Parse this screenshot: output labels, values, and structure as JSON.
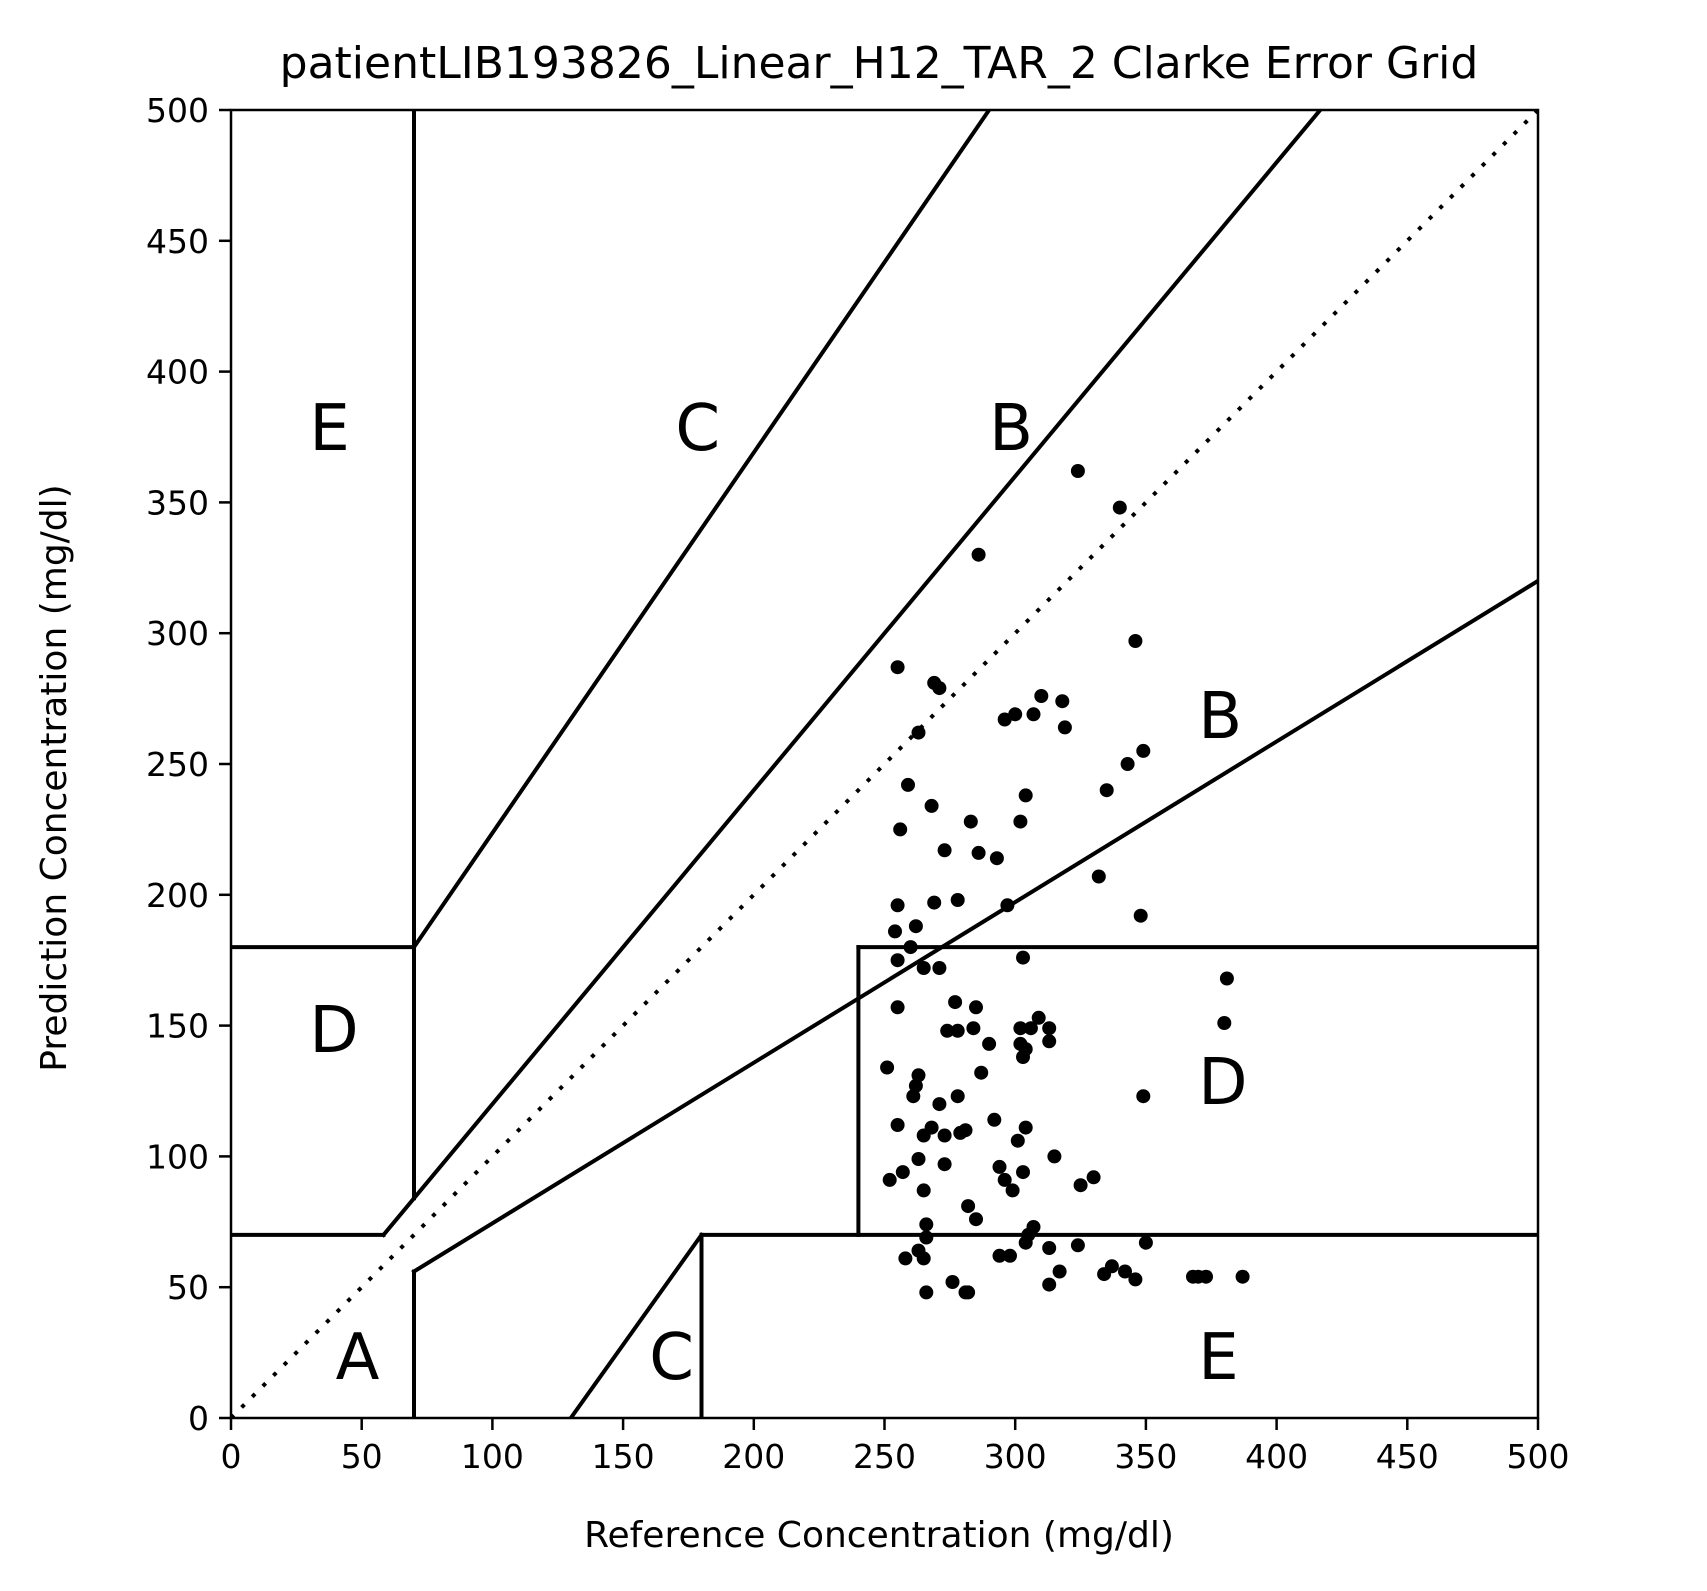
{
  "chart_data": {
    "type": "scatter",
    "title": "patientLIB193826_Linear_H12_TAR_2 Clarke Error Grid",
    "xlabel": "Reference Concentration (mg/dl)",
    "ylabel": "Prediction Concentration (mg/dl)",
    "xlim": [
      0,
      500
    ],
    "ylim": [
      0,
      500
    ],
    "xticks": [
      "0",
      "50",
      "100",
      "150",
      "200",
      "250",
      "300",
      "350",
      "400",
      "450",
      "500"
    ],
    "yticks": [
      "0",
      "50",
      "100",
      "150",
      "200",
      "250",
      "300",
      "350",
      "400",
      "450",
      "500"
    ],
    "grid": false,
    "legend": "none",
    "colors": {
      "points": "#000000",
      "lines": "#000000",
      "background": "#ffffff"
    },
    "zone_labels": [
      {
        "text": "A",
        "x": 40,
        "y": 15
      },
      {
        "text": "B",
        "x": 290,
        "y": 370
      },
      {
        "text": "B",
        "x": 370,
        "y": 260
      },
      {
        "text": "C",
        "x": 170,
        "y": 370
      },
      {
        "text": "C",
        "x": 160,
        "y": 15
      },
      {
        "text": "D",
        "x": 30,
        "y": 140
      },
      {
        "text": "D",
        "x": 370,
        "y": 120
      },
      {
        "text": "E",
        "x": 30,
        "y": 370
      },
      {
        "text": "E",
        "x": 370,
        "y": 15
      }
    ],
    "grid_lines": [
      {
        "style": "solid",
        "points": [
          [
            0,
            70
          ],
          [
            58.33,
            70
          ]
        ]
      },
      {
        "style": "solid",
        "points": [
          [
            58.33,
            70
          ],
          [
            416.67,
            500
          ]
        ]
      },
      {
        "style": "solid",
        "points": [
          [
            70,
            84
          ],
          [
            70,
            500
          ]
        ]
      },
      {
        "style": "solid",
        "points": [
          [
            70,
            56
          ],
          [
            70,
            0
          ]
        ]
      },
      {
        "style": "solid",
        "points": [
          [
            70,
            56
          ],
          [
            500,
            320
          ]
        ]
      },
      {
        "style": "solid",
        "points": [
          [
            70,
            180
          ],
          [
            290,
            500
          ]
        ]
      },
      {
        "style": "solid",
        "points": [
          [
            0,
            180
          ],
          [
            70,
            180
          ]
        ]
      },
      {
        "style": "solid",
        "points": [
          [
            240,
            180
          ],
          [
            500,
            180
          ]
        ]
      },
      {
        "style": "solid",
        "points": [
          [
            240,
            70
          ],
          [
            240,
            180
          ]
        ]
      },
      {
        "style": "solid",
        "points": [
          [
            180,
            70
          ],
          [
            500,
            70
          ]
        ]
      },
      {
        "style": "solid",
        "points": [
          [
            180,
            0
          ],
          [
            180,
            70
          ]
        ]
      },
      {
        "style": "solid",
        "points": [
          [
            130,
            0
          ],
          [
            180,
            70
          ]
        ]
      },
      {
        "style": "dotted",
        "points": [
          [
            0,
            0
          ],
          [
            500,
            500
          ]
        ]
      }
    ],
    "series": [
      {
        "x": [
          324,
          340,
          286,
          346,
          255,
          269,
          271,
          310,
          300,
          296,
          307,
          318,
          319,
          263,
          349,
          343,
          335,
          259,
          304,
          268,
          256,
          283,
          302,
          273,
          286,
          293,
          332,
          278,
          269,
          297,
          348,
          255,
          262,
          254,
          260,
          255,
          265,
          271,
          303,
          381,
          277,
          285,
          255,
          284,
          313,
          380,
          302,
          309,
          306,
          313,
          303,
          274,
          278,
          290,
          287,
          302,
          251,
          304,
          263,
          262,
          349,
          261,
          278,
          271,
          255,
          292,
          268,
          304,
          279,
          273,
          281,
          301,
          265,
          315,
          257,
          294,
          330,
          273,
          263,
          303,
          325,
          252,
          265,
          296,
          299,
          282,
          285,
          266,
          307,
          350,
          305,
          304,
          266,
          263,
          324,
          313,
          294,
          265,
          337,
          368,
          342,
          387,
          370,
          373,
          298,
          317,
          334,
          346,
          258,
          313,
          276,
          282,
          266,
          281
        ],
        "y": [
          362,
          348,
          330,
          297,
          287,
          281,
          279,
          276,
          269,
          267,
          269,
          274,
          264,
          262,
          255,
          250,
          240,
          242,
          238,
          234,
          225,
          228,
          228,
          217,
          216,
          214,
          207,
          198,
          197,
          196,
          192,
          196,
          188,
          186,
          180,
          175,
          172,
          172,
          176,
          168,
          159,
          157,
          157,
          149,
          144,
          151,
          149,
          153,
          149,
          149,
          138,
          148,
          148,
          143,
          132,
          143,
          134,
          141,
          131,
          127,
          123,
          123,
          123,
          120,
          112,
          114,
          111,
          111,
          109,
          108,
          110,
          106,
          108,
          100,
          94,
          96,
          92,
          97,
          99,
          94,
          89,
          91,
          87,
          91,
          87,
          81,
          76,
          74,
          73,
          67,
          70,
          67,
          69,
          64,
          66,
          65,
          62,
          61,
          58,
          54,
          56,
          54,
          54,
          54,
          62,
          56,
          55,
          53,
          61,
          51,
          52,
          48,
          48,
          48
        ]
      }
    ]
  }
}
